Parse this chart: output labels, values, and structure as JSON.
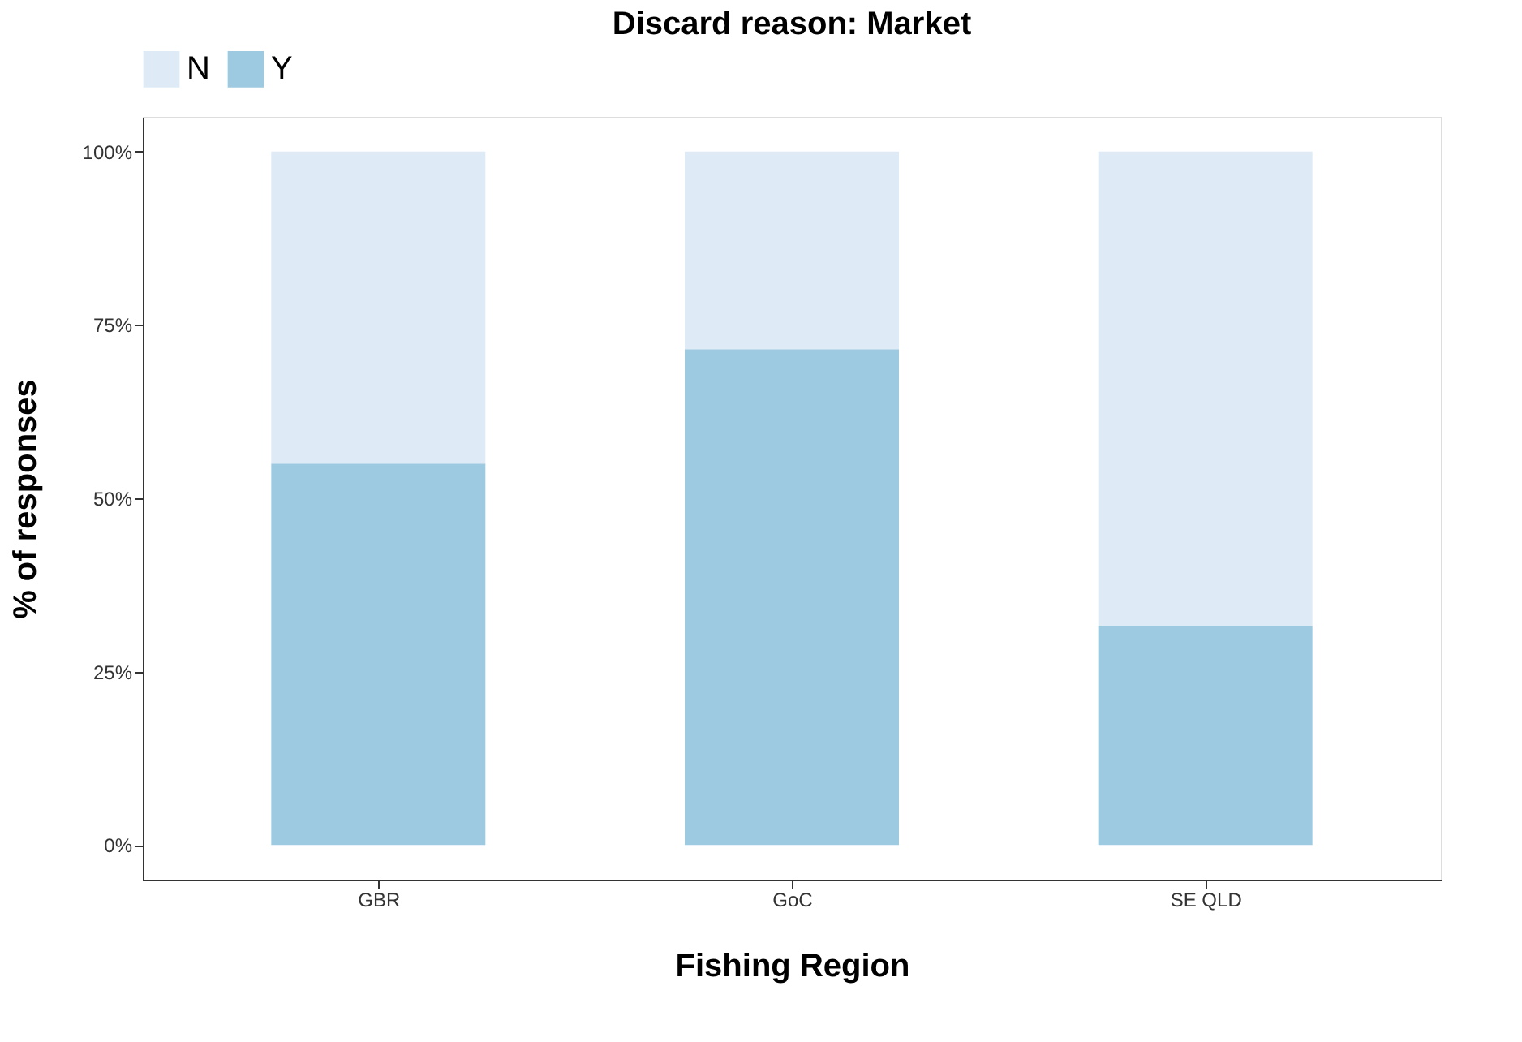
{
  "chart_data": {
    "type": "bar",
    "stacked": true,
    "title": "Discard reason: Market",
    "xlabel": "Fishing Region",
    "ylabel": "% of responses",
    "categories": [
      "GBR",
      "GoC",
      "SE QLD"
    ],
    "series": [
      {
        "name": "Y",
        "color": "#9ecae1",
        "values": [
          55,
          71.5,
          31.5
        ]
      },
      {
        "name": "N",
        "color": "#deebf7",
        "values": [
          45,
          28.5,
          68.5
        ]
      }
    ],
    "ylim": [
      -5,
      105
    ],
    "yticks": [
      {
        "value": 0,
        "label": "0%"
      },
      {
        "value": 25,
        "label": "25%"
      },
      {
        "value": 50,
        "label": "50%"
      },
      {
        "value": 75,
        "label": "75%"
      },
      {
        "value": 100,
        "label": "100%"
      }
    ],
    "grid": false,
    "legend": "top"
  }
}
